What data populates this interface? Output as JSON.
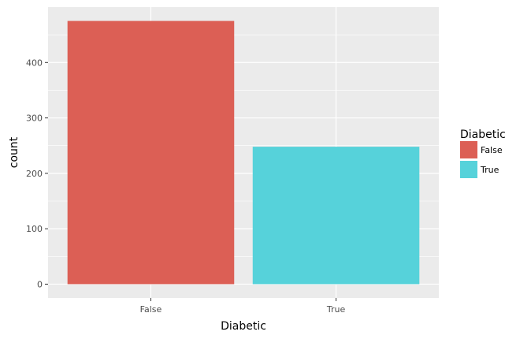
{
  "chart_data": {
    "type": "bar",
    "categories": [
      "False",
      "True"
    ],
    "values": [
      475,
      248
    ],
    "xlabel": "Diabetic",
    "ylabel": "count",
    "ylim": [
      0,
      500
    ],
    "yticks": [
      0,
      100,
      200,
      300,
      400
    ],
    "grid": true,
    "legend": {
      "title": "Diabetic",
      "position": "right",
      "entries": [
        {
          "label": "False",
          "color": "#dc5f55"
        },
        {
          "label": "True",
          "color": "#56d2da"
        }
      ]
    },
    "colors": [
      "#dc5f55",
      "#56d2da"
    ],
    "panel_color": "#ebebeb",
    "grid_color": "#ffffff"
  }
}
